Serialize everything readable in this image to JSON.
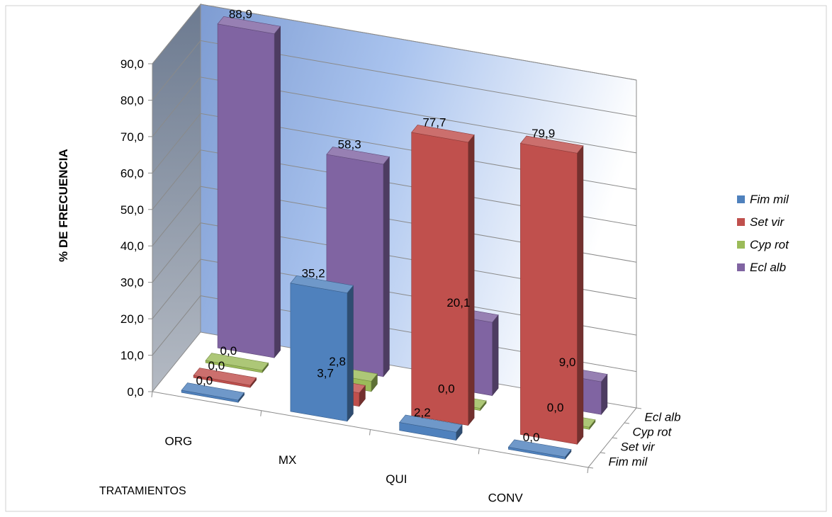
{
  "chart_data": {
    "type": "bar",
    "subtype": "3d-column",
    "categories": [
      "ORG",
      "MX",
      "QUI",
      "CONV"
    ],
    "series": [
      {
        "name": "Fim mil",
        "values": [
          0.0,
          35.2,
          2.2,
          0.0
        ]
      },
      {
        "name": "Set vir",
        "values": [
          0.0,
          3.7,
          77.7,
          79.9
        ]
      },
      {
        "name": "Cyp rot",
        "values": [
          0.0,
          2.8,
          0.0,
          0.0
        ]
      },
      {
        "name": "Ecl alb",
        "values": [
          88.9,
          58.3,
          20.1,
          9.0
        ]
      }
    ],
    "data_labels": [
      [
        "0,0",
        "35,2",
        "2,2",
        "0,0"
      ],
      [
        "0,0",
        "3,7",
        "77,7",
        "79,9"
      ],
      [
        "0,0",
        "2,8",
        "0,0",
        "0,0"
      ],
      [
        "88,9",
        "58,3",
        "20,1",
        "9,0"
      ]
    ],
    "yticks": [
      "0,0",
      "10,0",
      "20,0",
      "30,0",
      "40,0",
      "50,0",
      "60,0",
      "70,0",
      "80,0",
      "90,0"
    ],
    "ylim": [
      0,
      90
    ],
    "ylabel": "% DE FRECUENCIA",
    "xlabel": "TRATAMIENTOS",
    "depth_labels": [
      "Fim mil",
      "Set vir",
      "Cyp rot",
      "Ecl alb"
    ],
    "legend": {
      "position": "right",
      "entries": [
        "Fim mil",
        "Set vir",
        "Cyp rot",
        "Ecl alb"
      ]
    },
    "colors": {
      "series": [
        "#4F81BD",
        "#C0504D",
        "#9BBB59",
        "#8064A2"
      ],
      "back_wall": "#9DB9E8",
      "side_wall": "#808A98",
      "gridline": "#8a8a8a",
      "border": "#d0d0d0"
    },
    "grid": true
  }
}
